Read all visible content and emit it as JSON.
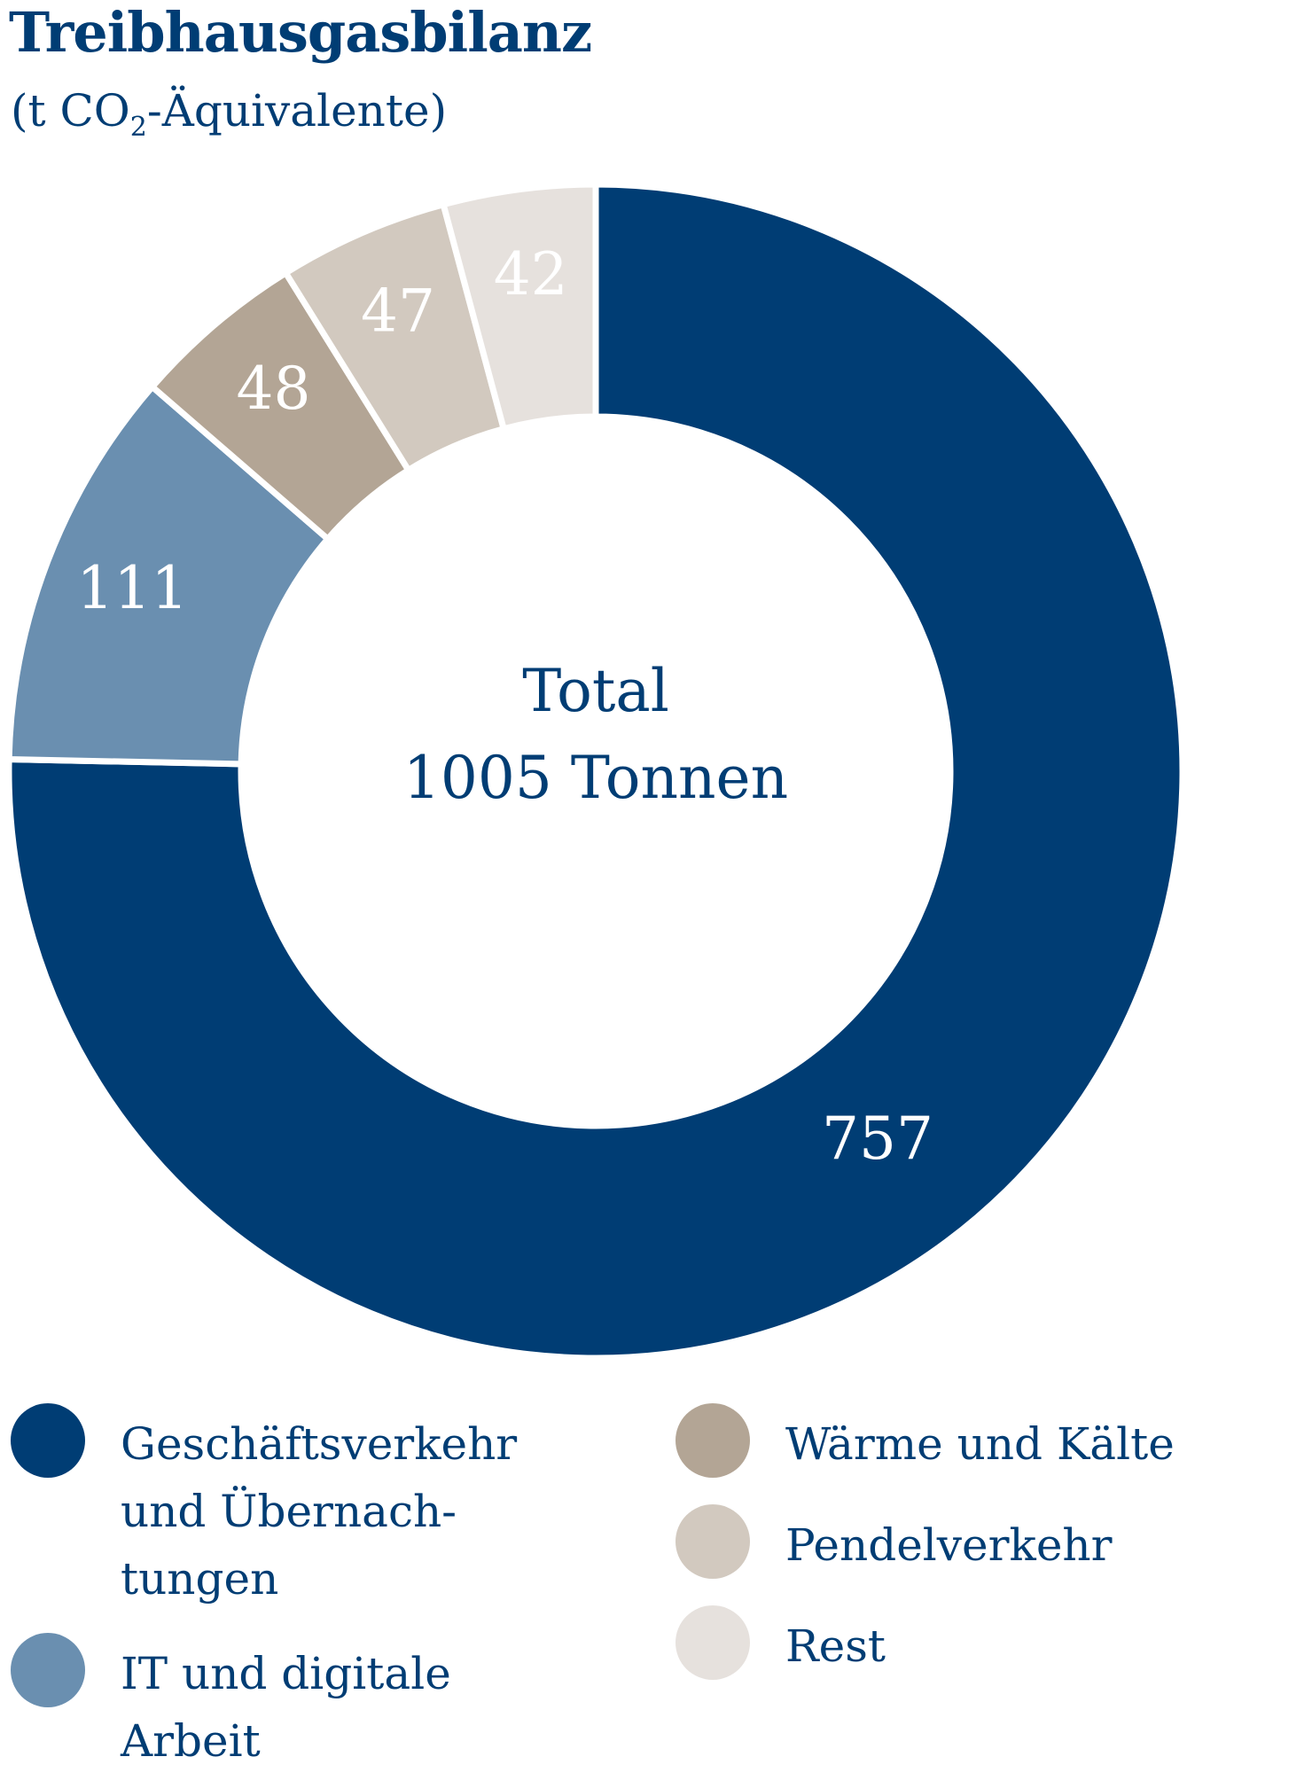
{
  "header": {
    "title": "Treibhausgasbilanz",
    "subtitle_prefix": "(t CO",
    "subtitle_sub": "2",
    "subtitle_suffix": "-Äquivalente)"
  },
  "center": {
    "line1": "Total",
    "line2": "1005 Tonnen"
  },
  "chart_data": {
    "type": "pie",
    "donut": true,
    "title": "Treibhausgasbilanz",
    "unit": "t CO2-Äquivalente",
    "total": 1005,
    "slices": [
      {
        "label": "Geschäftsverkehr und Übernachtungen",
        "value": 757,
        "color": "#003d74"
      },
      {
        "label": "IT und digitale Arbeit",
        "value": 111,
        "color": "#6a8fb0"
      },
      {
        "label": "Wärme und Kälte",
        "value": 48,
        "color": "#b3a595"
      },
      {
        "label": "Pendelverkehr",
        "value": 47,
        "color": "#d2c9bf"
      },
      {
        "label": "Rest",
        "value": 42,
        "color": "#e6e1dd"
      }
    ],
    "legend_position": "bottom"
  },
  "legend": {
    "items": [
      {
        "label": "Geschäftsverkehr und Übernach-tungen"
      },
      {
        "label": "IT und digitale Arbeit"
      },
      {
        "label": "Wärme und Kälte"
      },
      {
        "label": "Pendelverkehr"
      },
      {
        "label": "Rest"
      }
    ]
  }
}
